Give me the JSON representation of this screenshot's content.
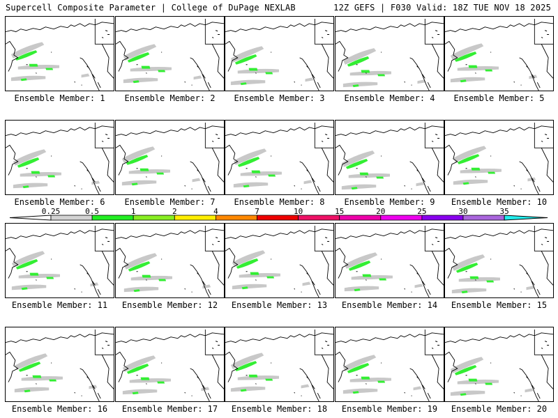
{
  "header": {
    "left": "Supercell Composite Parameter | College of DuPage NEXLAB",
    "right": "12Z GEFS | F030 Valid: 18Z TUE NOV 18 2025"
  },
  "panels": [
    {
      "label": "Ensemble Member: 1"
    },
    {
      "label": "Ensemble Member: 2"
    },
    {
      "label": "Ensemble Member: 3"
    },
    {
      "label": "Ensemble Member: 4"
    },
    {
      "label": "Ensemble Member: 5"
    },
    {
      "label": "Ensemble Member: 6"
    },
    {
      "label": "Ensemble Member: 7"
    },
    {
      "label": "Ensemble Member: 8"
    },
    {
      "label": "Ensemble Member: 9"
    },
    {
      "label": "Ensemble Member: 10"
    },
    {
      "label": "Ensemble Member: 11"
    },
    {
      "label": "Ensemble Member: 12"
    },
    {
      "label": "Ensemble Member: 13"
    },
    {
      "label": "Ensemble Member: 14"
    },
    {
      "label": "Ensemble Member: 15"
    },
    {
      "label": "Ensemble Member: 16"
    },
    {
      "label": "Ensemble Member: 17"
    },
    {
      "label": "Ensemble Member: 18"
    },
    {
      "label": "Ensemble Member: 19"
    },
    {
      "label": "Ensemble Member: 20"
    }
  ],
  "colorbar": {
    "ticks": [
      "0.25",
      "0.5",
      "1",
      "2",
      "4",
      "7",
      "10",
      "15",
      "20",
      "25",
      "30",
      "35"
    ],
    "colors": [
      "#d3d3d3",
      "#22ee22",
      "#88ee22",
      "#ffee00",
      "#ff8800",
      "#ee0000",
      "#ee1166",
      "#ee00aa",
      "#ee00ee",
      "#8800ee",
      "#aa66dd"
    ],
    "low_extend_color": "#ffffff",
    "high_extend_color": "#22eeee"
  },
  "map_colors": {
    "gray": "#c8c8c8",
    "green": "#33ee33",
    "coast": "#000000"
  }
}
